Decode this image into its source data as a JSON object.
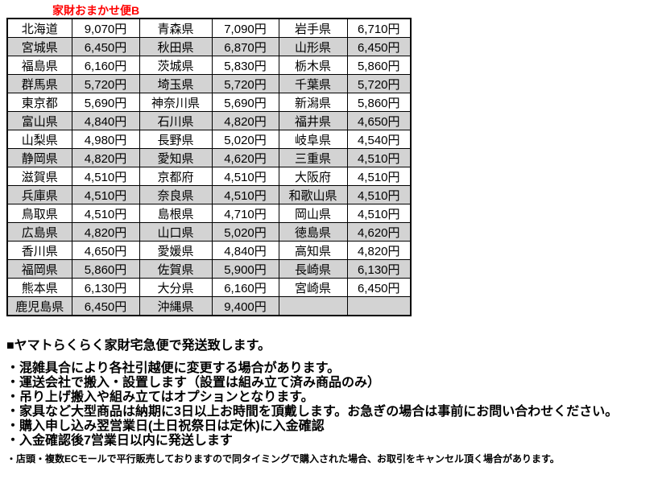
{
  "title": "家財おまかせ便B",
  "table": {
    "rows": [
      [
        "北海道",
        "9,070円",
        "青森県",
        "7,090円",
        "岩手県",
        "6,710円"
      ],
      [
        "宮城県",
        "6,450円",
        "秋田県",
        "6,870円",
        "山形県",
        "6,450円"
      ],
      [
        "福島県",
        "6,160円",
        "茨城県",
        "5,830円",
        "栃木県",
        "5,860円"
      ],
      [
        "群馬県",
        "5,720円",
        "埼玉県",
        "5,720円",
        "千葉県",
        "5,720円"
      ],
      [
        "東京都",
        "5,690円",
        "神奈川県",
        "5,690円",
        "新潟県",
        "5,860円"
      ],
      [
        "富山県",
        "4,840円",
        "石川県",
        "4,820円",
        "福井県",
        "4,650円"
      ],
      [
        "山梨県",
        "4,980円",
        "長野県",
        "5,020円",
        "岐阜県",
        "4,540円"
      ],
      [
        "静岡県",
        "4,820円",
        "愛知県",
        "4,620円",
        "三重県",
        "4,510円"
      ],
      [
        "滋賀県",
        "4,510円",
        "京都府",
        "4,510円",
        "大阪府",
        "4,510円"
      ],
      [
        "兵庫県",
        "4,510円",
        "奈良県",
        "4,510円",
        "和歌山県",
        "4,510円"
      ],
      [
        "鳥取県",
        "4,510円",
        "島根県",
        "4,710円",
        "岡山県",
        "4,510円"
      ],
      [
        "広島県",
        "4,820円",
        "山口県",
        "5,020円",
        "徳島県",
        "4,620円"
      ],
      [
        "香川県",
        "4,650円",
        "愛媛県",
        "4,840円",
        "高知県",
        "4,820円"
      ],
      [
        "福岡県",
        "5,860円",
        "佐賀県",
        "5,900円",
        "長崎県",
        "6,130円"
      ],
      [
        "熊本県",
        "6,130円",
        "大分県",
        "6,160円",
        "宮崎県",
        "6,450円"
      ],
      [
        "鹿児島県",
        "6,450円",
        "沖縄県",
        "9,400円",
        "",
        ""
      ]
    ]
  },
  "notes": {
    "heading": "■ヤマトらくらく家財宅急便で発送致します。",
    "bullets": [
      "・混雑具合により各社引越便に変更する場合があります。",
      "・運送会社で搬入・設置します（設置は組み立て済み商品のみ）",
      "・吊り上げ搬入や組み立てはオプションとなります。",
      "・家具など大型商品は納期に3日以上お時間を頂戴します。お急ぎの場合は事前にお問い合わせください。",
      "・購入申し込み翌営業日(土日祝祭日は定休)に入金確認",
      "・入金確認後7営業日以内に発送します"
    ],
    "footnote": "・店頭・複数ECモールで平行販売しておりますので同タイミングで購入された場合、お取引をキャンセル頂く場合があります。"
  },
  "colors": {
    "title_red": "#ff0000",
    "shaded_row": "#d3d3d3",
    "border": "#000000",
    "background": "#ffffff"
  }
}
